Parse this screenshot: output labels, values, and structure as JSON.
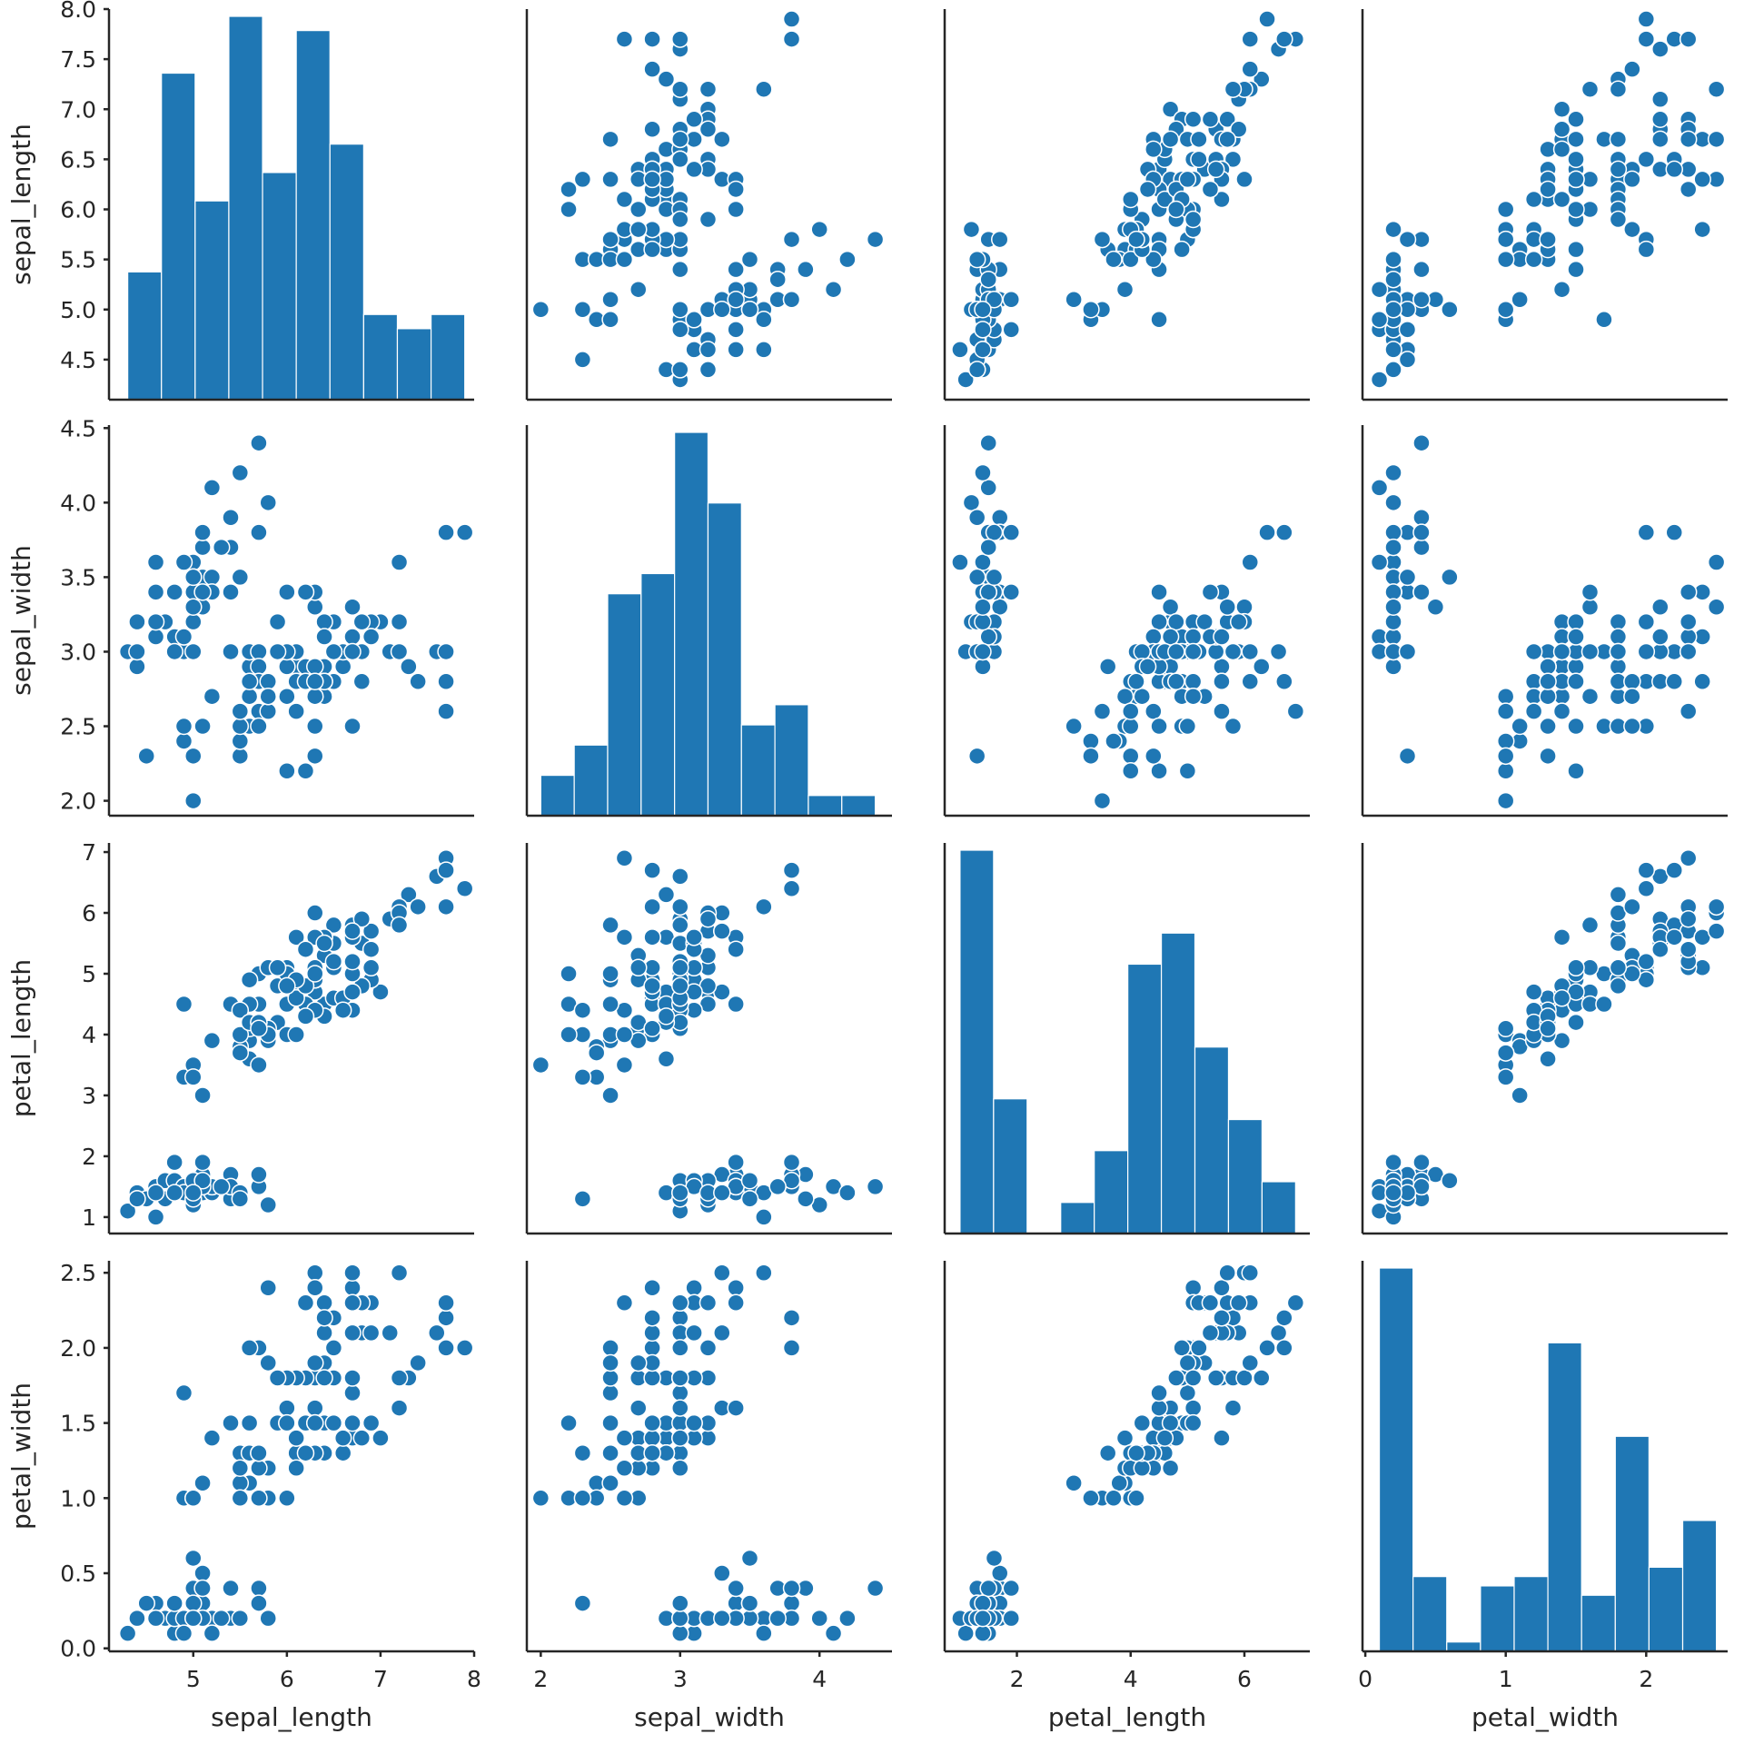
{
  "chart_data": {
    "type": "scatter",
    "grid": false,
    "variables": [
      "sepal_length",
      "sepal_width",
      "petal_length",
      "petal_width"
    ],
    "ranges": {
      "sepal_length": [
        4.1,
        8.0
      ],
      "sepal_width": [
        1.9,
        4.52
      ],
      "petal_length": [
        0.73,
        7.15
      ],
      "petal_width": [
        -0.02,
        2.58
      ]
    },
    "x_ticks": {
      "sepal_length": [
        "5",
        "6",
        "7",
        "8"
      ],
      "sepal_width": [
        "2",
        "3",
        "4"
      ],
      "petal_length": [
        "2",
        "4",
        "6"
      ],
      "petal_width": [
        "0",
        "1",
        "2"
      ]
    },
    "y_ticks": {
      "sepal_length": [
        "4.5",
        "5.0",
        "5.5",
        "6.0",
        "6.5",
        "7.0",
        "7.5",
        "8.0"
      ],
      "sepal_width": [
        "2.0",
        "2.5",
        "3.0",
        "3.5",
        "4.0",
        "4.5"
      ],
      "petal_length": [
        "1",
        "2",
        "3",
        "4",
        "5",
        "6",
        "7"
      ],
      "petal_width": [
        "0.0",
        "0.5",
        "1.0",
        "1.5",
        "2.0",
        "2.5"
      ]
    },
    "histograms": {
      "sepal_length": {
        "edges": [
          4.3,
          4.66,
          5.02,
          5.38,
          5.74,
          6.1,
          6.46,
          6.82,
          7.18,
          7.54,
          7.9
        ],
        "counts": [
          9,
          23,
          14,
          27,
          16,
          26,
          18,
          6,
          5,
          6
        ]
      },
      "sepal_width": {
        "edges": [
          2.0,
          2.24,
          2.48,
          2.72,
          2.96,
          3.2,
          3.44,
          3.68,
          3.92,
          4.16,
          4.4
        ],
        "counts": [
          4,
          7,
          22,
          24,
          38,
          31,
          9,
          11,
          2,
          2
        ]
      },
      "petal_length": {
        "edges": [
          1.0,
          1.59,
          2.18,
          2.77,
          3.36,
          3.95,
          4.54,
          5.13,
          5.72,
          6.31,
          6.9
        ],
        "counts": [
          37,
          13,
          0,
          3,
          8,
          26,
          29,
          18,
          11,
          5
        ]
      },
      "petal_width": {
        "edges": [
          0.1,
          0.34,
          0.58,
          0.82,
          1.06,
          1.3,
          1.54,
          1.78,
          2.02,
          2.26,
          2.5
        ],
        "counts": [
          41,
          8,
          1,
          7,
          8,
          33,
          6,
          23,
          9,
          14
        ]
      }
    },
    "samples": [
      [
        5.1,
        3.5,
        1.4,
        0.2
      ],
      [
        4.9,
        3.0,
        1.4,
        0.2
      ],
      [
        4.7,
        3.2,
        1.3,
        0.2
      ],
      [
        4.6,
        3.1,
        1.5,
        0.2
      ],
      [
        5.0,
        3.6,
        1.4,
        0.2
      ],
      [
        5.4,
        3.9,
        1.7,
        0.4
      ],
      [
        4.6,
        3.4,
        1.4,
        0.3
      ],
      [
        5.0,
        3.4,
        1.5,
        0.2
      ],
      [
        4.4,
        2.9,
        1.4,
        0.2
      ],
      [
        4.9,
        3.1,
        1.5,
        0.1
      ],
      [
        5.4,
        3.7,
        1.5,
        0.2
      ],
      [
        4.8,
        3.4,
        1.6,
        0.2
      ],
      [
        4.8,
        3.0,
        1.4,
        0.1
      ],
      [
        4.3,
        3.0,
        1.1,
        0.1
      ],
      [
        5.8,
        4.0,
        1.2,
        0.2
      ],
      [
        5.7,
        4.4,
        1.5,
        0.4
      ],
      [
        5.4,
        3.9,
        1.3,
        0.4
      ],
      [
        5.1,
        3.5,
        1.4,
        0.3
      ],
      [
        5.7,
        3.8,
        1.7,
        0.3
      ],
      [
        5.1,
        3.8,
        1.5,
        0.3
      ],
      [
        5.4,
        3.4,
        1.7,
        0.2
      ],
      [
        5.1,
        3.7,
        1.5,
        0.4
      ],
      [
        4.6,
        3.6,
        1.0,
        0.2
      ],
      [
        5.1,
        3.3,
        1.7,
        0.5
      ],
      [
        4.8,
        3.4,
        1.9,
        0.2
      ],
      [
        5.0,
        3.0,
        1.6,
        0.2
      ],
      [
        5.0,
        3.4,
        1.6,
        0.4
      ],
      [
        5.2,
        3.5,
        1.5,
        0.2
      ],
      [
        5.2,
        3.4,
        1.4,
        0.2
      ],
      [
        4.7,
        3.2,
        1.6,
        0.2
      ],
      [
        4.8,
        3.1,
        1.6,
        0.2
      ],
      [
        5.4,
        3.4,
        1.5,
        0.4
      ],
      [
        5.2,
        4.1,
        1.5,
        0.1
      ],
      [
        5.5,
        4.2,
        1.4,
        0.2
      ],
      [
        4.9,
        3.1,
        1.5,
        0.2
      ],
      [
        5.0,
        3.2,
        1.2,
        0.2
      ],
      [
        5.5,
        3.5,
        1.3,
        0.2
      ],
      [
        4.9,
        3.6,
        1.4,
        0.1
      ],
      [
        4.4,
        3.0,
        1.3,
        0.2
      ],
      [
        5.1,
        3.4,
        1.5,
        0.2
      ],
      [
        5.0,
        3.5,
        1.3,
        0.3
      ],
      [
        4.5,
        2.3,
        1.3,
        0.3
      ],
      [
        4.4,
        3.2,
        1.3,
        0.2
      ],
      [
        5.0,
        3.5,
        1.6,
        0.6
      ],
      [
        5.1,
        3.8,
        1.9,
        0.4
      ],
      [
        4.8,
        3.0,
        1.4,
        0.3
      ],
      [
        5.1,
        3.8,
        1.6,
        0.2
      ],
      [
        4.6,
        3.2,
        1.4,
        0.2
      ],
      [
        5.3,
        3.7,
        1.5,
        0.2
      ],
      [
        5.0,
        3.3,
        1.4,
        0.2
      ],
      [
        7.0,
        3.2,
        4.7,
        1.4
      ],
      [
        6.4,
        3.2,
        4.5,
        1.5
      ],
      [
        6.9,
        3.1,
        4.9,
        1.5
      ],
      [
        5.5,
        2.3,
        4.0,
        1.3
      ],
      [
        6.5,
        2.8,
        4.6,
        1.5
      ],
      [
        5.7,
        2.8,
        4.5,
        1.3
      ],
      [
        6.3,
        3.3,
        4.7,
        1.6
      ],
      [
        4.9,
        2.4,
        3.3,
        1.0
      ],
      [
        6.6,
        2.9,
        4.6,
        1.3
      ],
      [
        5.2,
        2.7,
        3.9,
        1.4
      ],
      [
        5.0,
        2.0,
        3.5,
        1.0
      ],
      [
        5.9,
        3.0,
        4.2,
        1.5
      ],
      [
        6.0,
        2.2,
        4.0,
        1.0
      ],
      [
        6.1,
        2.9,
        4.7,
        1.4
      ],
      [
        5.6,
        2.9,
        3.6,
        1.3
      ],
      [
        6.7,
        3.1,
        4.4,
        1.4
      ],
      [
        5.6,
        3.0,
        4.5,
        1.5
      ],
      [
        5.8,
        2.7,
        4.1,
        1.0
      ],
      [
        6.2,
        2.2,
        4.5,
        1.5
      ],
      [
        5.6,
        2.5,
        3.9,
        1.1
      ],
      [
        5.9,
        3.2,
        4.8,
        1.8
      ],
      [
        6.1,
        2.8,
        4.0,
        1.3
      ],
      [
        6.3,
        2.5,
        4.9,
        1.5
      ],
      [
        6.1,
        2.8,
        4.7,
        1.2
      ],
      [
        6.4,
        2.9,
        4.3,
        1.3
      ],
      [
        6.6,
        3.0,
        4.4,
        1.4
      ],
      [
        6.8,
        2.8,
        4.8,
        1.4
      ],
      [
        6.7,
        3.0,
        5.0,
        1.7
      ],
      [
        6.0,
        2.9,
        4.5,
        1.5
      ],
      [
        5.7,
        2.6,
        3.5,
        1.0
      ],
      [
        5.5,
        2.4,
        3.8,
        1.1
      ],
      [
        5.5,
        2.4,
        3.7,
        1.0
      ],
      [
        5.8,
        2.7,
        3.9,
        1.2
      ],
      [
        6.0,
        2.7,
        5.1,
        1.6
      ],
      [
        5.4,
        3.0,
        4.5,
        1.5
      ],
      [
        6.0,
        3.4,
        4.5,
        1.6
      ],
      [
        6.7,
        3.1,
        4.7,
        1.5
      ],
      [
        6.3,
        2.3,
        4.4,
        1.3
      ],
      [
        5.6,
        3.0,
        4.1,
        1.3
      ],
      [
        5.5,
        2.5,
        4.0,
        1.3
      ],
      [
        5.5,
        2.6,
        4.4,
        1.2
      ],
      [
        6.1,
        3.0,
        4.6,
        1.4
      ],
      [
        5.8,
        2.6,
        4.0,
        1.2
      ],
      [
        5.0,
        2.3,
        3.3,
        1.0
      ],
      [
        5.6,
        2.7,
        4.2,
        1.3
      ],
      [
        5.7,
        3.0,
        4.2,
        1.2
      ],
      [
        5.7,
        2.9,
        4.2,
        1.3
      ],
      [
        6.2,
        2.9,
        4.3,
        1.3
      ],
      [
        5.1,
        2.5,
        3.0,
        1.1
      ],
      [
        5.7,
        2.8,
        4.1,
        1.3
      ],
      [
        6.3,
        3.3,
        6.0,
        2.5
      ],
      [
        5.8,
        2.7,
        5.1,
        1.9
      ],
      [
        7.1,
        3.0,
        5.9,
        2.1
      ],
      [
        6.3,
        2.9,
        5.6,
        1.8
      ],
      [
        6.5,
        3.0,
        5.8,
        2.2
      ],
      [
        7.6,
        3.0,
        6.6,
        2.1
      ],
      [
        4.9,
        2.5,
        4.5,
        1.7
      ],
      [
        7.3,
        2.9,
        6.3,
        1.8
      ],
      [
        6.7,
        2.5,
        5.8,
        1.8
      ],
      [
        7.2,
        3.6,
        6.1,
        2.5
      ],
      [
        6.5,
        3.2,
        5.1,
        2.0
      ],
      [
        6.4,
        2.7,
        5.3,
        1.9
      ],
      [
        6.8,
        3.0,
        5.5,
        2.1
      ],
      [
        5.7,
        2.5,
        5.0,
        2.0
      ],
      [
        5.8,
        2.8,
        5.1,
        2.4
      ],
      [
        6.4,
        3.2,
        5.3,
        2.3
      ],
      [
        6.5,
        3.0,
        5.5,
        1.8
      ],
      [
        7.7,
        3.8,
        6.7,
        2.2
      ],
      [
        7.7,
        2.6,
        6.9,
        2.3
      ],
      [
        6.0,
        2.2,
        5.0,
        1.5
      ],
      [
        6.9,
        3.2,
        5.7,
        2.3
      ],
      [
        5.6,
        2.8,
        4.9,
        2.0
      ],
      [
        7.7,
        2.8,
        6.7,
        2.0
      ],
      [
        6.3,
        2.7,
        4.9,
        1.8
      ],
      [
        6.7,
        3.3,
        5.7,
        2.1
      ],
      [
        7.2,
        3.2,
        6.0,
        1.8
      ],
      [
        6.2,
        2.8,
        4.8,
        1.8
      ],
      [
        6.1,
        3.0,
        4.9,
        1.8
      ],
      [
        6.4,
        2.8,
        5.6,
        2.1
      ],
      [
        7.2,
        3.0,
        5.8,
        1.6
      ],
      [
        7.4,
        2.8,
        6.1,
        1.9
      ],
      [
        7.9,
        3.8,
        6.4,
        2.0
      ],
      [
        6.4,
        2.8,
        5.6,
        2.2
      ],
      [
        6.3,
        2.8,
        5.1,
        1.5
      ],
      [
        6.1,
        2.6,
        5.6,
        1.4
      ],
      [
        7.7,
        3.0,
        6.1,
        2.3
      ],
      [
        6.3,
        3.4,
        5.6,
        2.4
      ],
      [
        6.4,
        3.1,
        5.5,
        1.8
      ],
      [
        6.0,
        3.0,
        4.8,
        1.8
      ],
      [
        6.9,
        3.1,
        5.4,
        2.1
      ],
      [
        6.7,
        3.1,
        5.6,
        2.4
      ],
      [
        6.9,
        3.1,
        5.1,
        2.3
      ],
      [
        5.8,
        2.7,
        5.1,
        1.9
      ],
      [
        6.8,
        3.2,
        5.9,
        2.3
      ],
      [
        6.7,
        3.3,
        5.7,
        2.5
      ],
      [
        6.7,
        3.0,
        5.2,
        2.3
      ],
      [
        6.3,
        2.5,
        5.0,
        1.9
      ],
      [
        6.5,
        3.0,
        5.2,
        2.0
      ],
      [
        6.2,
        3.4,
        5.4,
        2.3
      ],
      [
        5.9,
        3.0,
        5.1,
        1.8
      ]
    ]
  }
}
